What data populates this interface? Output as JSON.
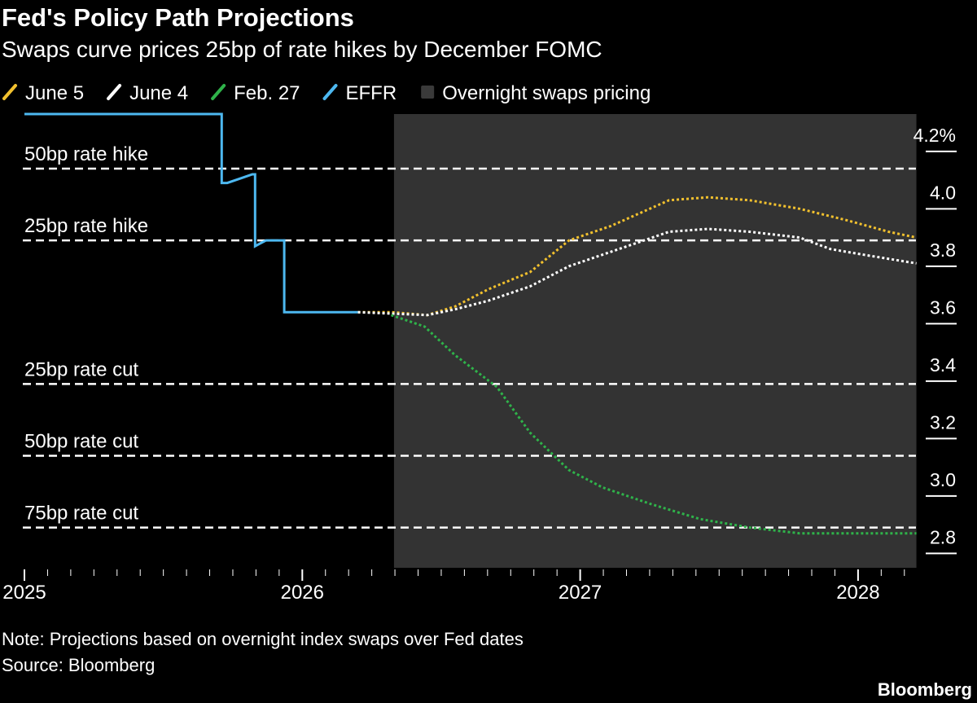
{
  "chart_data": {
    "type": "line",
    "title": "Fed's Policy Path Projections",
    "subtitle": "Swaps curve prices 25bp of rate hikes by December FOMC",
    "note": "Note: Projections based on overnight index swaps over Fed dates",
    "source": "Source: Bloomberg",
    "brand": "Bloomberg",
    "xlim": [
      2025,
      2028.21
    ],
    "xticks": [
      2025,
      2026,
      2027,
      2028
    ],
    "ylim": [
      2.75,
      4.33
    ],
    "yticks": [
      {
        "value": 4.2,
        "label": "4.2%"
      },
      {
        "value": 4,
        "label": "4.0"
      },
      3.8,
      3.6,
      3.4,
      3.2,
      {
        "value": 3,
        "label": "3.0"
      },
      2.8
    ],
    "y_axis_side": "right",
    "shaded_region": {
      "name": "Overnight swaps pricing",
      "color": "#333333",
      "xstart": 2026.33
    },
    "reference_lines": [
      {
        "label": "50bp rate hike",
        "value": 4.14
      },
      {
        "label": "25bp rate hike",
        "value": 3.89
      },
      {
        "label": "25bp rate cut",
        "value": 3.39
      },
      {
        "label": "50bp rate cut",
        "value": 3.14
      },
      {
        "label": "75bp rate cut",
        "value": 2.89
      }
    ],
    "series": [
      {
        "name": "June 5",
        "color": "#f2c12e",
        "line_style": "dotted",
        "x": [
          2026.2,
          2026.32,
          2026.45,
          2026.55,
          2026.67,
          2026.82,
          2026.96,
          2027.11,
          2027.32,
          2027.46,
          2027.61,
          2027.79,
          2027.96,
          2028.11,
          2028.21
        ],
        "values": [
          3.64,
          3.64,
          3.63,
          3.66,
          3.72,
          3.78,
          3.89,
          3.94,
          4.03,
          4.04,
          4.03,
          4.0,
          3.96,
          3.92,
          3.9
        ]
      },
      {
        "name": "June 4",
        "color": "#ffffff",
        "line_style": "dotted",
        "x": [
          2026.2,
          2026.45,
          2026.55,
          2026.67,
          2026.82,
          2026.96,
          2027.11,
          2027.23,
          2027.32,
          2027.46,
          2027.61,
          2027.79,
          2027.9,
          2028.02,
          2028.21
        ],
        "values": [
          3.64,
          3.63,
          3.65,
          3.68,
          3.73,
          3.8,
          3.85,
          3.89,
          3.92,
          3.93,
          3.92,
          3.9,
          3.86,
          3.84,
          3.81
        ]
      },
      {
        "name": "Feb. 27",
        "color": "#2fb34a",
        "line_style": "dotted",
        "x": [
          2026.32,
          2026.44,
          2026.55,
          2026.7,
          2026.82,
          2026.96,
          2027.08,
          2027.26,
          2027.43,
          2027.61,
          2027.79,
          2027.99,
          2028.21
        ],
        "values": [
          3.63,
          3.59,
          3.49,
          3.38,
          3.22,
          3.09,
          3.03,
          2.97,
          2.92,
          2.89,
          2.87,
          2.87,
          2.87
        ]
      },
      {
        "name": "EFFR",
        "color": "#4db8f0",
        "line_style": "solid",
        "x": [
          2025,
          2025.71,
          2025.71,
          2025.73,
          2025.76,
          2025.79,
          2025.82,
          2025.83,
          2025.83,
          2025.85,
          2025.87,
          2025.935,
          2025.935,
          2026.2
        ],
        "values": [
          4.33,
          4.33,
          4.09,
          4.09,
          4.1,
          4.11,
          4.12,
          4.12,
          3.87,
          3.88,
          3.89,
          3.89,
          3.64,
          3.64
        ]
      }
    ]
  }
}
